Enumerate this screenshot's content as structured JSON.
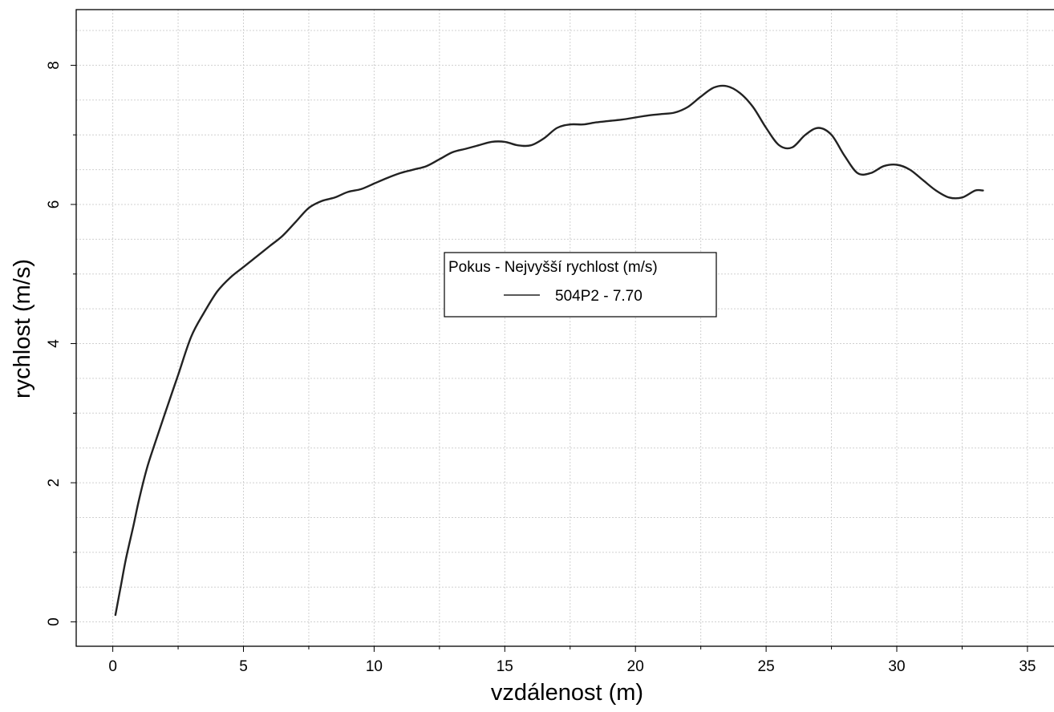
{
  "chart_data": {
    "type": "line",
    "xlabel": "vzdálenost (m)",
    "ylabel": "rychlost (m/s)",
    "xlim": [
      -1.4,
      36.2
    ],
    "ylim": [
      -0.35,
      8.8
    ],
    "x_ticks": [
      0,
      5,
      10,
      15,
      20,
      25,
      30,
      35
    ],
    "y_ticks": [
      0,
      2,
      4,
      6,
      8
    ],
    "x_tick_labels": [
      "0",
      "5",
      "10",
      "15",
      "20",
      "25",
      "30",
      "35"
    ],
    "y_tick_labels": [
      "0",
      "2",
      "4",
      "6",
      "8"
    ],
    "grid": true,
    "legend": {
      "title": "Pokus - Nejvyšší rychlost (m/s)",
      "placement": "center",
      "entries": [
        "504P2 - 7.70"
      ]
    },
    "series": [
      {
        "name": "504P2 - 7.70",
        "color": "#222222",
        "x": [
          0.1,
          0.3,
          0.5,
          0.8,
          1.0,
          1.3,
          1.6,
          2.0,
          2.5,
          3.0,
          3.5,
          4.0,
          4.5,
          5.0,
          5.5,
          6.0,
          6.5,
          7.0,
          7.5,
          8.0,
          8.5,
          9.0,
          9.5,
          10.0,
          10.5,
          11.0,
          11.5,
          12.0,
          12.5,
          13.0,
          13.5,
          14.0,
          14.5,
          15.0,
          15.5,
          16.0,
          16.5,
          17.0,
          17.5,
          18.0,
          18.5,
          19.0,
          19.5,
          20.0,
          20.5,
          21.0,
          21.5,
          22.0,
          22.5,
          23.0,
          23.5,
          24.0,
          24.5,
          25.0,
          25.5,
          26.0,
          26.5,
          27.0,
          27.5,
          28.0,
          28.5,
          29.0,
          29.5,
          30.0,
          30.5,
          31.0,
          31.5,
          32.0,
          32.5,
          33.0,
          33.3
        ],
        "y": [
          0.1,
          0.5,
          0.9,
          1.4,
          1.75,
          2.2,
          2.55,
          3.0,
          3.55,
          4.1,
          4.45,
          4.75,
          4.95,
          5.1,
          5.25,
          5.4,
          5.55,
          5.75,
          5.95,
          6.05,
          6.1,
          6.18,
          6.22,
          6.3,
          6.38,
          6.45,
          6.5,
          6.55,
          6.65,
          6.75,
          6.8,
          6.85,
          6.9,
          6.9,
          6.85,
          6.85,
          6.95,
          7.1,
          7.15,
          7.15,
          7.18,
          7.2,
          7.22,
          7.25,
          7.28,
          7.3,
          7.32,
          7.4,
          7.55,
          7.68,
          7.7,
          7.6,
          7.4,
          7.1,
          6.85,
          6.82,
          7.0,
          7.1,
          7.0,
          6.7,
          6.45,
          6.45,
          6.55,
          6.57,
          6.5,
          6.35,
          6.2,
          6.1,
          6.1,
          6.2,
          6.2
        ]
      }
    ]
  }
}
